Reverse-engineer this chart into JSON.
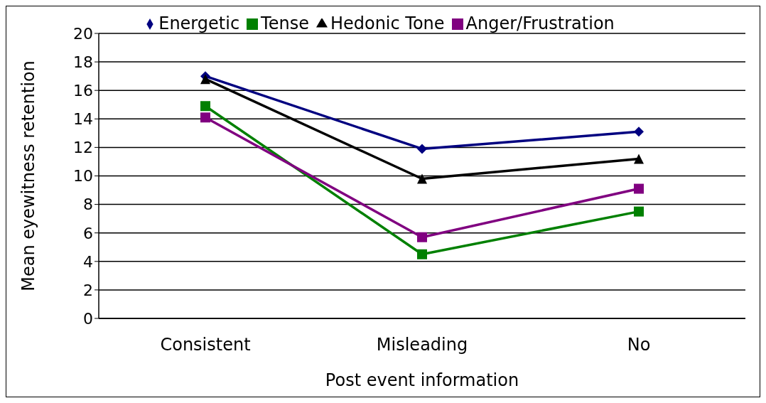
{
  "chart_data": {
    "type": "line",
    "xlabel": "Post event information",
    "ylabel": "Mean eyewitness retention",
    "categories": [
      "Consistent",
      "Misleading",
      "No"
    ],
    "series": [
      {
        "name": "Energetic",
        "color": "#000080",
        "marker": "diamond",
        "values": [
          17,
          11.9,
          13.1
        ]
      },
      {
        "name": "Tense",
        "color": "#008000",
        "marker": "square",
        "values": [
          14.9,
          4.5,
          7.5
        ]
      },
      {
        "name": "Hedonic Tone",
        "color": "#000000",
        "marker": "triangle",
        "values": [
          16.8,
          9.8,
          11.2
        ]
      },
      {
        "name": "Anger/Frustration",
        "color": "#800080",
        "marker": "square",
        "values": [
          14.1,
          5.7,
          9.1
        ]
      }
    ],
    "ylim": [
      0,
      20
    ],
    "yticks": [
      0,
      2,
      4,
      6,
      8,
      10,
      12,
      14,
      16,
      18,
      20
    ],
    "grid": "y",
    "legend": "top",
    "line_style": "solid"
  }
}
